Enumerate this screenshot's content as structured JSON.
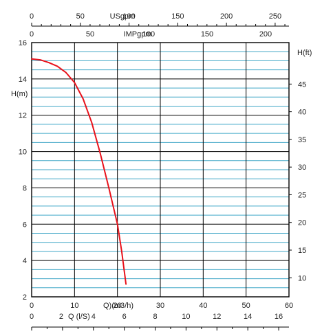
{
  "chart_data": {
    "type": "line",
    "axes": {
      "bottom_q_m3h": {
        "label": "Q)(m3/h)",
        "range": [
          0,
          60
        ],
        "ticks": [
          0,
          10,
          20,
          30,
          40,
          50,
          60
        ]
      },
      "bottom_q_ls": {
        "label": "Q (l/S)",
        "range": [
          0,
          16.667
        ],
        "ticks": [
          0,
          2,
          4,
          6,
          8,
          10,
          12,
          14,
          16
        ]
      },
      "top_usgpm": {
        "label": "USgpm",
        "range": [
          0,
          264.2
        ],
        "ticks": [
          0,
          50,
          100,
          150,
          200,
          250
        ]
      },
      "top_impgpm": {
        "label": "IMPgpm",
        "range": [
          0,
          220
        ],
        "ticks": [
          0,
          50,
          100,
          150,
          200
        ]
      },
      "left_h_m": {
        "label": "H(m)",
        "range": [
          2,
          16
        ],
        "ticks": [
          2,
          4,
          6,
          8,
          10,
          12,
          14,
          16
        ]
      },
      "right_h_ft": {
        "label": "H(ft)",
        "range": [
          6.56,
          52.49
        ],
        "ticks": [
          10,
          15,
          20,
          25,
          30,
          35,
          40,
          45
        ]
      }
    },
    "series": [
      {
        "color": "#e8121b",
        "x": [
          0,
          2,
          4,
          6,
          8,
          10,
          12,
          14,
          16,
          18,
          20,
          21,
          22
        ],
        "y": [
          15.1,
          15.05,
          14.9,
          14.7,
          14.35,
          13.8,
          12.9,
          11.6,
          9.9,
          8.0,
          6.0,
          4.5,
          2.7
        ]
      }
    ],
    "grid": {
      "major_color": "#000000",
      "minor_color": "#3fa6c6"
    }
  }
}
